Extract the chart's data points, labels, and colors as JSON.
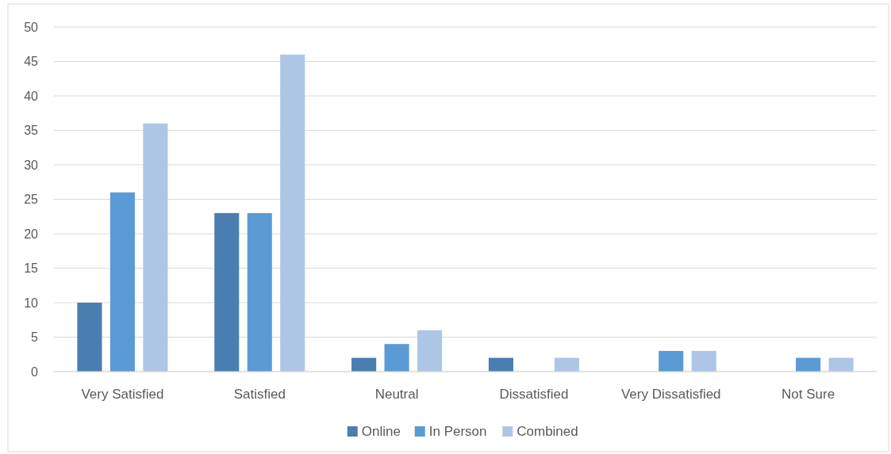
{
  "chart_data": {
    "type": "bar",
    "categories": [
      "Very Satisfied",
      "Satisfied",
      "Neutral",
      "Dissatisfied",
      "Very Dissatisfied",
      "Not Sure"
    ],
    "series": [
      {
        "name": "Online",
        "color": "#4a7eb0",
        "values": [
          10,
          23,
          2,
          2,
          0,
          0
        ]
      },
      {
        "name": "In Person",
        "color": "#5b9bd5",
        "values": [
          26,
          23,
          4,
          0,
          3,
          2
        ]
      },
      {
        "name": "Combined",
        "color": "#adc6e5",
        "values": [
          36,
          46,
          6,
          2,
          3,
          2
        ]
      }
    ],
    "ylim": [
      0,
      50
    ],
    "yticks": [
      0,
      5,
      10,
      15,
      20,
      25,
      30,
      35,
      40,
      45,
      50
    ],
    "grid": "y",
    "legend": "bottom"
  }
}
